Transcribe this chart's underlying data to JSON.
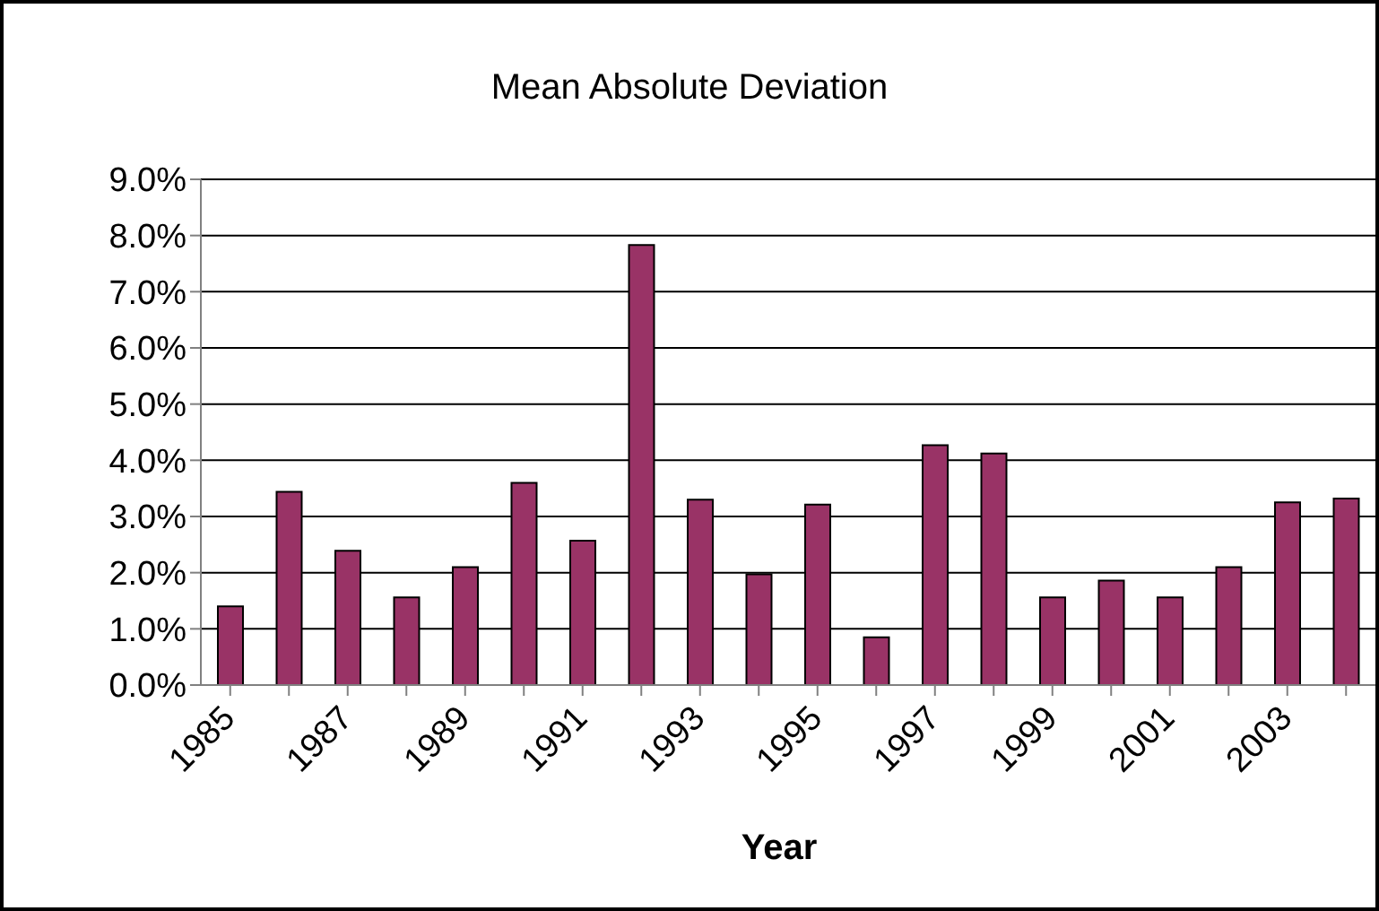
{
  "chart_data": {
    "type": "bar",
    "title": "Mean Absolute Deviation",
    "xlabel": "Year",
    "categories": [
      "1985",
      null,
      "1987",
      null,
      "1989",
      null,
      "1991",
      null,
      "1993",
      null,
      "1995",
      null,
      "1997",
      null,
      "1999",
      null,
      "2001",
      null,
      "2003",
      null
    ],
    "values": [
      1.4,
      3.44,
      2.39,
      1.56,
      2.1,
      3.6,
      2.57,
      7.83,
      3.3,
      1.97,
      3.21,
      0.85,
      4.27,
      4.12,
      1.56,
      1.86,
      1.56,
      2.1,
      3.25,
      3.32
    ],
    "color": "#993366",
    "ylim": [
      0,
      9
    ],
    "yticks": [
      {
        "value": 0,
        "label": "0.0%"
      },
      {
        "value": 1,
        "label": "1.0%"
      },
      {
        "value": 2,
        "label": "2.0%"
      },
      {
        "value": 3,
        "label": "3.0%"
      },
      {
        "value": 4,
        "label": "4.0%"
      },
      {
        "value": 5,
        "label": "5.0%"
      },
      {
        "value": 6,
        "label": "6.0%"
      },
      {
        "value": 7,
        "label": "7.0%"
      },
      {
        "value": 8,
        "label": "8.0%"
      },
      {
        "value": 9,
        "label": "9.0%"
      }
    ],
    "grid": "y"
  }
}
